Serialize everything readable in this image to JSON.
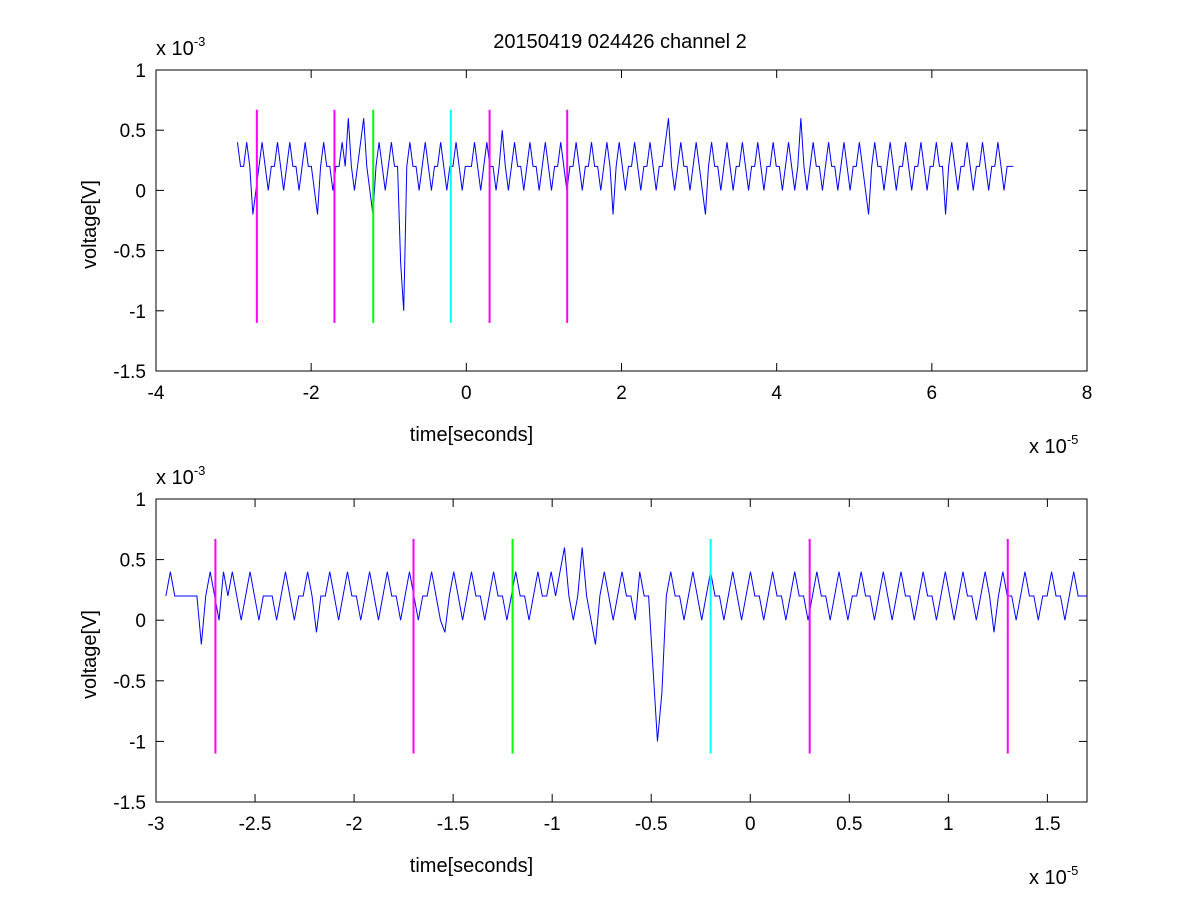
{
  "chart_data": [
    {
      "type": "line",
      "title": "20150419 024426 channel 2",
      "xlabel": "time[seconds]",
      "ylabel": "voltage[V]",
      "x_multiplier": "x 10",
      "x_exponent": "-5",
      "y_multiplier": "x 10",
      "y_exponent": "-3",
      "xlim": [
        -4,
        8
      ],
      "ylim": [
        -1.5,
        1
      ],
      "xticks": [
        -4,
        -2,
        0,
        2,
        4,
        6,
        8
      ],
      "xtick_labels": [
        "-4",
        "-2",
        "0",
        "2",
        "4",
        "6",
        "8"
      ],
      "yticks": [
        -1.5,
        -1,
        -0.5,
        0,
        0.5,
        1
      ],
      "ytick_labels": [
        "-1.5",
        "-1",
        "-0.5",
        "0",
        "0.5",
        "1"
      ],
      "grid": false,
      "series": [
        {
          "color": "#0000ff",
          "x_range": [
            -2.95,
            7.05
          ],
          "baseline": 0.2,
          "values": [
            0.4,
            0.2,
            0.2,
            0.4,
            0.2,
            -0.2,
            0.0,
            0.2,
            0.4,
            0.2,
            0.0,
            0.2,
            0.2,
            0.4,
            0.2,
            0.0,
            0.2,
            0.4,
            0.2,
            0.2,
            0.0,
            0.2,
            0.4,
            0.2,
            0.2,
            0.0,
            -0.2,
            0.2,
            0.4,
            0.2,
            0.2,
            0.0,
            0.2,
            0.2,
            0.4,
            0.2,
            0.6,
            0.2,
            0.0,
            0.2,
            0.4,
            0.6,
            0.2,
            0.0,
            -0.2,
            0.2,
            0.4,
            0.2,
            0.0,
            0.2,
            0.4,
            0.2,
            0.2,
            -0.6,
            -1.0,
            0.2,
            0.4,
            0.2,
            0.2,
            0.0,
            0.2,
            0.4,
            0.2,
            0.0,
            0.2,
            0.2,
            0.4,
            0.2,
            0.0,
            0.2,
            0.2,
            0.4,
            0.2,
            0.0,
            0.2,
            0.2,
            0.2,
            0.4,
            0.2,
            0.0,
            0.2,
            0.4,
            0.2,
            0.2,
            0.0,
            0.2,
            0.5,
            0.2,
            0.0,
            0.2,
            0.4,
            0.2,
            0.2,
            0.0,
            0.2,
            0.4,
            0.2,
            0.2,
            0.0,
            0.2,
            0.4,
            0.2,
            0.0,
            0.2,
            0.2,
            0.4,
            0.2,
            0.0,
            0.2,
            0.2,
            0.4,
            0.2,
            0.0,
            0.2,
            0.2,
            0.4,
            0.2,
            0.2,
            0.0,
            0.2,
            0.4,
            0.2,
            -0.2,
            0.2,
            0.4,
            0.2,
            0.0,
            0.2,
            0.2,
            0.4,
            0.2,
            0.0,
            0.2,
            0.2,
            0.4,
            0.2,
            0.0,
            0.2,
            0.2,
            0.4,
            0.6,
            0.2,
            0.0,
            0.2,
            0.4,
            0.2,
            0.2,
            0.0,
            0.2,
            0.4,
            0.2,
            0.0,
            -0.2,
            0.2,
            0.4,
            0.2,
            0.2,
            0.0,
            0.2,
            0.4,
            0.2,
            0.0,
            0.2,
            0.2,
            0.4,
            0.2,
            0.0,
            0.2,
            0.2,
            0.4,
            0.2,
            0.0,
            0.2,
            0.2,
            0.4,
            0.2,
            0.2,
            0.0,
            0.2,
            0.4,
            0.2,
            0.0,
            0.2,
            0.6,
            0.2,
            0.0,
            0.2,
            0.4,
            0.2,
            0.2,
            0.0,
            0.2,
            0.4,
            0.2,
            0.2,
            0.0,
            0.2,
            0.4,
            0.2,
            0.0,
            0.2,
            0.2,
            0.4,
            0.2,
            0.0,
            -0.2,
            0.2,
            0.4,
            0.2,
            0.2,
            0.0,
            0.2,
            0.4,
            0.2,
            0.0,
            0.2,
            0.2,
            0.4,
            0.2,
            0.0,
            0.2,
            0.2,
            0.4,
            0.2,
            0.0,
            0.2,
            0.2,
            0.4,
            0.2,
            0.2,
            -0.2,
            0.2,
            0.4,
            0.2,
            0.0,
            0.2,
            0.2,
            0.4,
            0.2,
            0.0,
            0.2,
            0.2,
            0.4,
            0.2,
            0.0,
            0.2,
            0.2,
            0.4,
            0.2,
            0.0,
            0.2,
            0.2,
            0.2
          ]
        }
      ],
      "markers": [
        {
          "x": -2.7,
          "color": "#ff00ff"
        },
        {
          "x": -1.7,
          "color": "#ff00ff"
        },
        {
          "x": -1.2,
          "color": "#00ff00"
        },
        {
          "x": -0.2,
          "color": "#00ffff"
        },
        {
          "x": 0.3,
          "color": "#ff00ff"
        },
        {
          "x": 1.3,
          "color": "#ff00ff"
        }
      ],
      "marker_ylim": [
        -1.1,
        0.67
      ]
    },
    {
      "type": "line",
      "xlabel": "time[seconds]",
      "ylabel": "voltage[V]",
      "x_multiplier": "x 10",
      "x_exponent": "-5",
      "y_multiplier": "x 10",
      "y_exponent": "-3",
      "xlim": [
        -3.0,
        1.7
      ],
      "ylim": [
        -1.5,
        1
      ],
      "xticks": [
        -3,
        -2.5,
        -2,
        -1.5,
        -1,
        -0.5,
        0,
        0.5,
        1,
        1.5
      ],
      "xtick_labels": [
        "-3",
        "-2.5",
        "-2",
        "-1.5",
        "-1",
        "-0.5",
        "0",
        "0.5",
        "1",
        "1.5"
      ],
      "yticks": [
        -1.5,
        -1,
        -0.5,
        0,
        0.5,
        1
      ],
      "ytick_labels": [
        "-1.5",
        "-1",
        "-0.5",
        "0",
        "0.5",
        "1"
      ],
      "grid": false,
      "series": [
        {
          "color": "#0000ff",
          "x_range": [
            -2.95,
            1.7
          ],
          "values": [
            0.2,
            0.4,
            0.2,
            0.2,
            0.2,
            0.2,
            0.2,
            0.2,
            -0.2,
            0.2,
            0.4,
            0.2,
            0.0,
            0.4,
            0.2,
            0.4,
            0.2,
            0.0,
            0.2,
            0.4,
            0.2,
            0.0,
            0.2,
            0.2,
            0.2,
            0.0,
            0.2,
            0.4,
            0.2,
            0.0,
            0.2,
            0.2,
            0.4,
            0.2,
            -0.1,
            0.2,
            0.2,
            0.4,
            0.2,
            0.0,
            0.2,
            0.4,
            0.2,
            0.2,
            0.0,
            0.2,
            0.4,
            0.2,
            0.0,
            0.2,
            0.4,
            0.2,
            0.2,
            0.0,
            0.2,
            0.4,
            0.2,
            0.0,
            0.2,
            0.2,
            0.4,
            0.2,
            0.0,
            -0.1,
            0.2,
            0.4,
            0.2,
            0.0,
            0.2,
            0.4,
            0.2,
            0.2,
            0.0,
            0.2,
            0.4,
            0.2,
            0.2,
            0.0,
            0.2,
            0.4,
            0.2,
            0.2,
            0.0,
            0.2,
            0.4,
            0.2,
            0.2,
            0.4,
            0.2,
            0.4,
            0.6,
            0.2,
            0.0,
            0.2,
            0.6,
            0.2,
            0.0,
            -0.2,
            0.2,
            0.4,
            0.2,
            0.0,
            0.2,
            0.4,
            0.2,
            0.2,
            0.0,
            0.4,
            0.2,
            0.2,
            -0.4,
            -1.0,
            -0.6,
            0.2,
            0.4,
            0.2,
            0.2,
            0.0,
            0.2,
            0.4,
            0.2,
            0.0,
            0.2,
            0.4,
            0.2,
            0.2,
            0.0,
            0.2,
            0.4,
            0.2,
            0.0,
            0.2,
            0.4,
            0.2,
            0.2,
            0.0,
            0.2,
            0.4,
            0.2,
            0.2,
            0.0,
            0.2,
            0.4,
            0.2,
            0.2,
            0.0,
            0.2,
            0.4,
            0.2,
            0.2,
            0.0,
            0.2,
            0.4,
            0.2,
            0.0,
            0.2,
            0.2,
            0.4,
            0.2,
            0.2,
            0.0,
            0.2,
            0.4,
            0.2,
            0.0,
            0.2,
            0.4,
            0.2,
            0.2,
            0.0,
            0.2,
            0.4,
            0.2,
            0.2,
            0.0,
            0.2,
            0.4,
            0.2,
            0.0,
            0.2,
            0.4,
            0.2,
            0.2,
            0.0,
            0.2,
            0.4,
            0.2,
            -0.1,
            0.2,
            0.4,
            0.2,
            0.2,
            0.0,
            0.2,
            0.4,
            0.2,
            0.2,
            0.0,
            0.2,
            0.2,
            0.4,
            0.2,
            0.2,
            0.0,
            0.2,
            0.4,
            0.2,
            0.2,
            0.2
          ]
        }
      ],
      "markers": [
        {
          "x": -2.7,
          "color": "#ff00ff"
        },
        {
          "x": -1.7,
          "color": "#ff00ff"
        },
        {
          "x": -1.2,
          "color": "#00ff00"
        },
        {
          "x": -0.2,
          "color": "#00ffff"
        },
        {
          "x": 0.3,
          "color": "#ff00ff"
        },
        {
          "x": 1.3,
          "color": "#ff00ff"
        }
      ],
      "marker_ylim": [
        -1.1,
        0.67
      ]
    }
  ]
}
